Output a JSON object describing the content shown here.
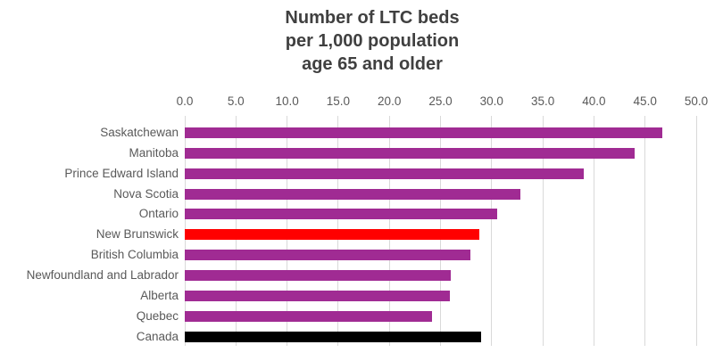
{
  "chart_data": {
    "type": "bar",
    "orientation": "horizontal",
    "title": "Number of LTC beds per 1,000 population age 65 and older",
    "title_lines": [
      "Number of LTC beds",
      "per 1,000 population",
      "age 65 and older"
    ],
    "categories": [
      "Saskatchewan",
      "Manitoba",
      "Prince Edward Island",
      "Nova Scotia",
      "Ontario",
      "New Brunswick",
      "British Columbia",
      "Newfoundland and Labrador",
      "Alberta",
      "Quebec",
      "Canada"
    ],
    "values": [
      46.7,
      44.0,
      39.0,
      32.8,
      30.5,
      28.8,
      27.9,
      26.0,
      25.9,
      24.2,
      29.0
    ],
    "bar_colors": [
      "#A02B93",
      "#A02B93",
      "#A02B93",
      "#A02B93",
      "#A02B93",
      "#FF0000",
      "#A02B93",
      "#A02B93",
      "#A02B93",
      "#A02B93",
      "#000000"
    ],
    "highlighted_category": "New Brunswick",
    "total_category": "Canada",
    "xlabel": "",
    "ylabel": "",
    "xlim": [
      0,
      50
    ],
    "xticks": [
      0,
      5,
      10,
      15,
      20,
      25,
      30,
      35,
      40,
      45,
      50
    ],
    "xtick_labels": [
      "0.0",
      "5.0",
      "10.0",
      "15.0",
      "20.0",
      "25.0",
      "30.0",
      "35.0",
      "40.0",
      "45.0",
      "50.0"
    ],
    "axis_position": "top",
    "grid": "vertical",
    "legend": "none",
    "colors": {
      "default_bar": "#A02B93",
      "highlight_bar": "#FF0000",
      "total_bar": "#000000",
      "gridline": "#D9D9D9",
      "title_text": "#404040",
      "axis_text": "#595959",
      "background": "#FFFFFF"
    }
  }
}
